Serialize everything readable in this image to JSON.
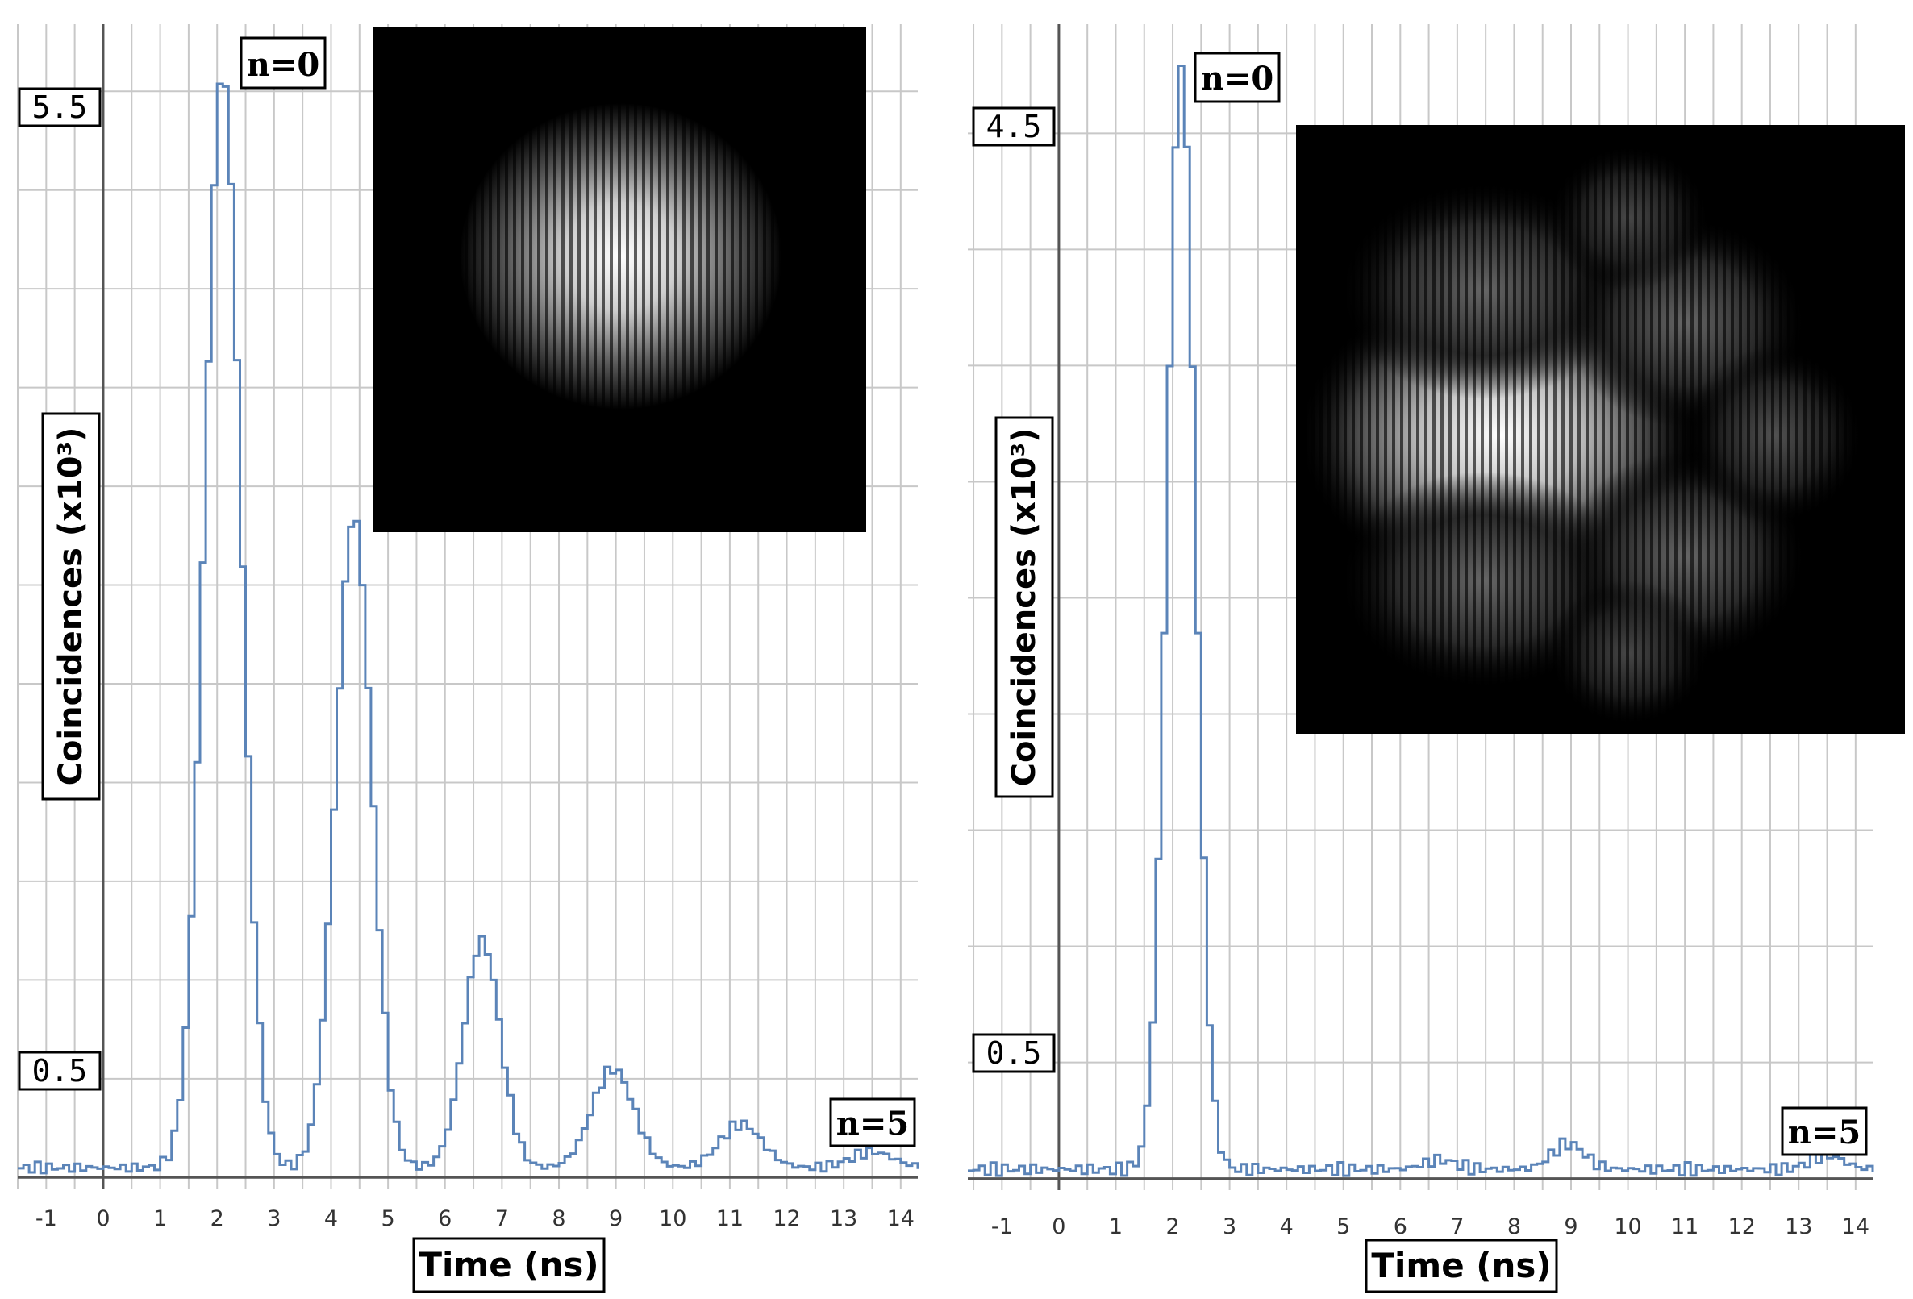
{
  "colors": {
    "line": "#5b84b8",
    "grid": "#c8c8c8",
    "axis": "#555555",
    "box": "#000000",
    "inset_bg": "#000000"
  },
  "chart_data": [
    {
      "type": "line",
      "xlabel": "Time (ns)",
      "ylabel": "Coincidences (x10³)",
      "xlim": [
        -1.5,
        14.3
      ],
      "x_ticks": [
        "-1",
        "0",
        "1",
        "2",
        "3",
        "4",
        "5",
        "6",
        "7",
        "8",
        "9",
        "10",
        "11",
        "12",
        "13",
        "14"
      ],
      "y_tick_labels": [
        {
          "text": "5.5",
          "value": 5.5
        },
        {
          "text": "0.5",
          "value": 0.5
        }
      ],
      "ylim": [
        -0.06,
        5.84
      ],
      "grid": true,
      "annotations": [
        {
          "text": "n=0",
          "x": 2.1,
          "y": 5.6
        },
        {
          "text": "n=5",
          "x": 13.4,
          "y": 0.34
        }
      ],
      "baseline": 0.05,
      "peaks": [
        {
          "x": 2.1,
          "y": 5.6
        },
        {
          "x": 4.4,
          "y": 3.35
        },
        {
          "x": 6.65,
          "y": 1.2
        },
        {
          "x": 8.95,
          "y": 0.55
        },
        {
          "x": 11.2,
          "y": 0.27
        },
        {
          "x": 13.5,
          "y": 0.13
        }
      ],
      "peak_width": 0.32,
      "inset": {
        "pattern": "fundamental-gaussian-mode"
      }
    },
    {
      "type": "line",
      "xlabel": "Time (ns)",
      "ylabel": "Coincidences (x10³)",
      "xlim": [
        -1.6,
        14.3
      ],
      "x_ticks": [
        "-1",
        "0",
        "1",
        "2",
        "3",
        "4",
        "5",
        "6",
        "7",
        "8",
        "9",
        "10",
        "11",
        "12",
        "13",
        "14"
      ],
      "y_tick_labels": [
        {
          "text": "4.5",
          "value": 4.5
        },
        {
          "text": "0.5",
          "value": 0.5
        }
      ],
      "ylim": [
        -0.05,
        4.97
      ],
      "grid": true,
      "annotations": [
        {
          "text": "n=0",
          "x": 2.15,
          "y": 4.8
        },
        {
          "text": "n=5",
          "x": 13.4,
          "y": 0.3
        }
      ],
      "baseline": 0.04,
      "peaks": [
        {
          "x": 2.15,
          "y": 4.8
        },
        {
          "x": 6.7,
          "y": 0.08
        },
        {
          "x": 8.95,
          "y": 0.15
        },
        {
          "x": 13.5,
          "y": 0.1
        }
      ],
      "peak_width": 0.25,
      "inset": {
        "pattern": "higher-order-mode"
      }
    }
  ]
}
